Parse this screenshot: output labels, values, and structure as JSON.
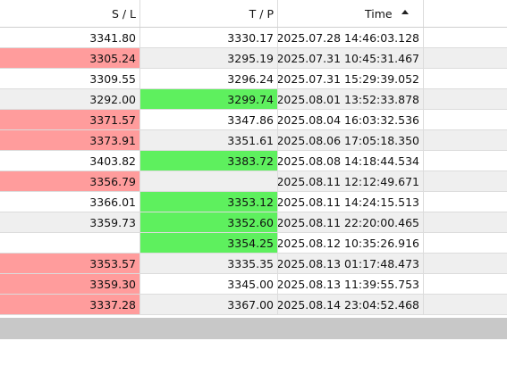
{
  "headers": {
    "sl": "S / L",
    "tp": "T / P",
    "time": "Time"
  },
  "colors": {
    "loss": "#ff9c9c",
    "profit": "#5ef05e",
    "alt_row": "#efefef"
  },
  "rows": [
    {
      "sl": "3341.80",
      "tp": "3330.17",
      "time": "2025.07.28 14:46:03.128",
      "sl_hl": "",
      "tp_hl": ""
    },
    {
      "sl": "3305.24",
      "tp": "3295.19",
      "time": "2025.07.31 10:45:31.467",
      "sl_hl": "red",
      "tp_hl": ""
    },
    {
      "sl": "3309.55",
      "tp": "3296.24",
      "time": "2025.07.31 15:29:39.052",
      "sl_hl": "",
      "tp_hl": ""
    },
    {
      "sl": "3292.00",
      "tp": "3299.74",
      "time": "2025.08.01 13:52:33.878",
      "sl_hl": "",
      "tp_hl": "green"
    },
    {
      "sl": "3371.57",
      "tp": "3347.86",
      "time": "2025.08.04 16:03:32.536",
      "sl_hl": "red",
      "tp_hl": ""
    },
    {
      "sl": "3373.91",
      "tp": "3351.61",
      "time": "2025.08.06 17:05:18.350",
      "sl_hl": "red",
      "tp_hl": ""
    },
    {
      "sl": "3403.82",
      "tp": "3383.72",
      "time": "2025.08.08 14:18:44.534",
      "sl_hl": "",
      "tp_hl": "green"
    },
    {
      "sl": "3356.79",
      "tp": "",
      "time": "2025.08.11 12:12:49.671",
      "sl_hl": "red",
      "tp_hl": ""
    },
    {
      "sl": "3366.01",
      "tp": "3353.12",
      "time": "2025.08.11 14:24:15.513",
      "sl_hl": "",
      "tp_hl": "green"
    },
    {
      "sl": "3359.73",
      "tp": "3352.60",
      "time": "2025.08.11 22:20:00.465",
      "sl_hl": "",
      "tp_hl": "green"
    },
    {
      "sl": "",
      "tp": "3354.25",
      "time": "2025.08.12 10:35:26.916",
      "sl_hl": "",
      "tp_hl": "green"
    },
    {
      "sl": "3353.57",
      "tp": "3335.35",
      "time": "2025.08.13 01:17:48.473",
      "sl_hl": "red",
      "tp_hl": ""
    },
    {
      "sl": "3359.30",
      "tp": "3345.00",
      "time": "2025.08.13 11:39:55.753",
      "sl_hl": "red",
      "tp_hl": ""
    },
    {
      "sl": "3337.28",
      "tp": "3367.00",
      "time": "2025.08.14 23:04:52.468",
      "sl_hl": "red",
      "tp_hl": ""
    }
  ]
}
